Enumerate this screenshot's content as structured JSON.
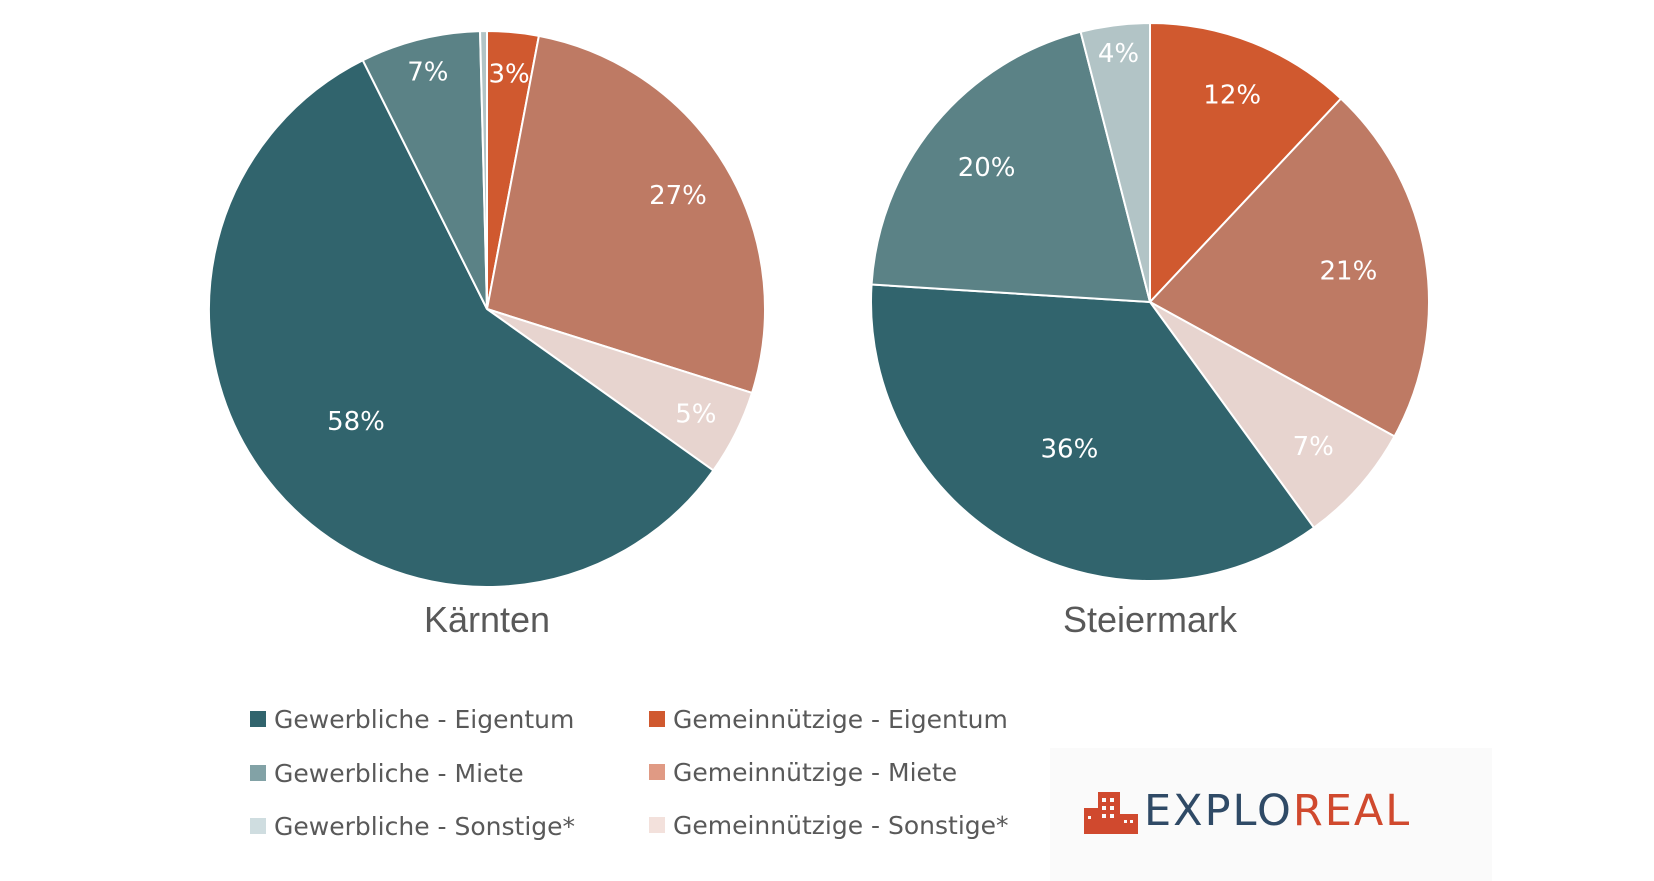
{
  "colors": {
    "gewerbliche_eigentum": "#31646d",
    "gewerbliche_miete": "#5b8286",
    "gewerbliche_sonstige": "#b2c4c6",
    "gemeinnuetzige_eigentum": "#d0592f",
    "gemeinnuetzige_miete": "#be7a64",
    "gemeinnuetzige_sonstige": "#e7d4cf",
    "legend_gewerbliche_miete": "#82a2a6",
    "legend_gewerbliche_sonstige": "#cfdde0",
    "legend_gemeinnuetzige_miete": "#e09a84",
    "legend_gemeinnuetzige_sonstige": "#f3e1dc",
    "logo_dark": "#2f4a66",
    "logo_red": "#d0492e"
  },
  "chart_data": [
    {
      "type": "pie",
      "title": "Kärnten",
      "slices": [
        {
          "name": "Gemeinnützige - Eigentum",
          "value": 3,
          "label": "3%",
          "color": "#d0592f"
        },
        {
          "name": "Gemeinnützige - Miete",
          "value": 27,
          "label": "27%",
          "color": "#be7a64"
        },
        {
          "name": "Gemeinnützige - Sonstige*",
          "value": 5,
          "label": "5%",
          "color": "#e7d4cf"
        },
        {
          "name": "Gewerbliche - Eigentum",
          "value": 58,
          "label": "58%",
          "color": "#31646d"
        },
        {
          "name": "Gewerbliche - Miete",
          "value": 7,
          "label": "7%",
          "color": "#5b8286"
        },
        {
          "name": "Gewerbliche - Sonstige*",
          "value": 0.4,
          "label": "",
          "color": "#b2c4c6"
        }
      ]
    },
    {
      "type": "pie",
      "title": "Steiermark",
      "slices": [
        {
          "name": "Gemeinnützige - Eigentum",
          "value": 12,
          "label": "12%",
          "color": "#d0592f"
        },
        {
          "name": "Gemeinnützige - Miete",
          "value": 21,
          "label": "21%",
          "color": "#be7a64"
        },
        {
          "name": "Gemeinnützige - Sonstige*",
          "value": 7,
          "label": "7%",
          "color": "#e7d4cf"
        },
        {
          "name": "Gewerbliche - Eigentum",
          "value": 36,
          "label": "36%",
          "color": "#31646d"
        },
        {
          "name": "Gewerbliche - Miete",
          "value": 20,
          "label": "20%",
          "color": "#5b8286"
        },
        {
          "name": "Gewerbliche - Sonstige*",
          "value": 4,
          "label": "4%",
          "color": "#b2c4c6"
        }
      ]
    }
  ],
  "legend": {
    "items": [
      {
        "label": "Gewerbliche - Eigentum",
        "color": "#31646d"
      },
      {
        "label": "Gemeinnützige - Eigentum",
        "color": "#d0592f"
      },
      {
        "label": "Gewerbliche - Miete",
        "color": "#82a2a6"
      },
      {
        "label": "Gemeinnützige - Miete",
        "color": "#e09a84"
      },
      {
        "label": "Gewerbliche - Sonstige*",
        "color": "#cfdde0"
      },
      {
        "label": "Gemeinnützige - Sonstige*",
        "color": "#f3e1dc"
      }
    ]
  },
  "logo": {
    "text_part1": "EXPLO",
    "text_part2": "REAL"
  }
}
